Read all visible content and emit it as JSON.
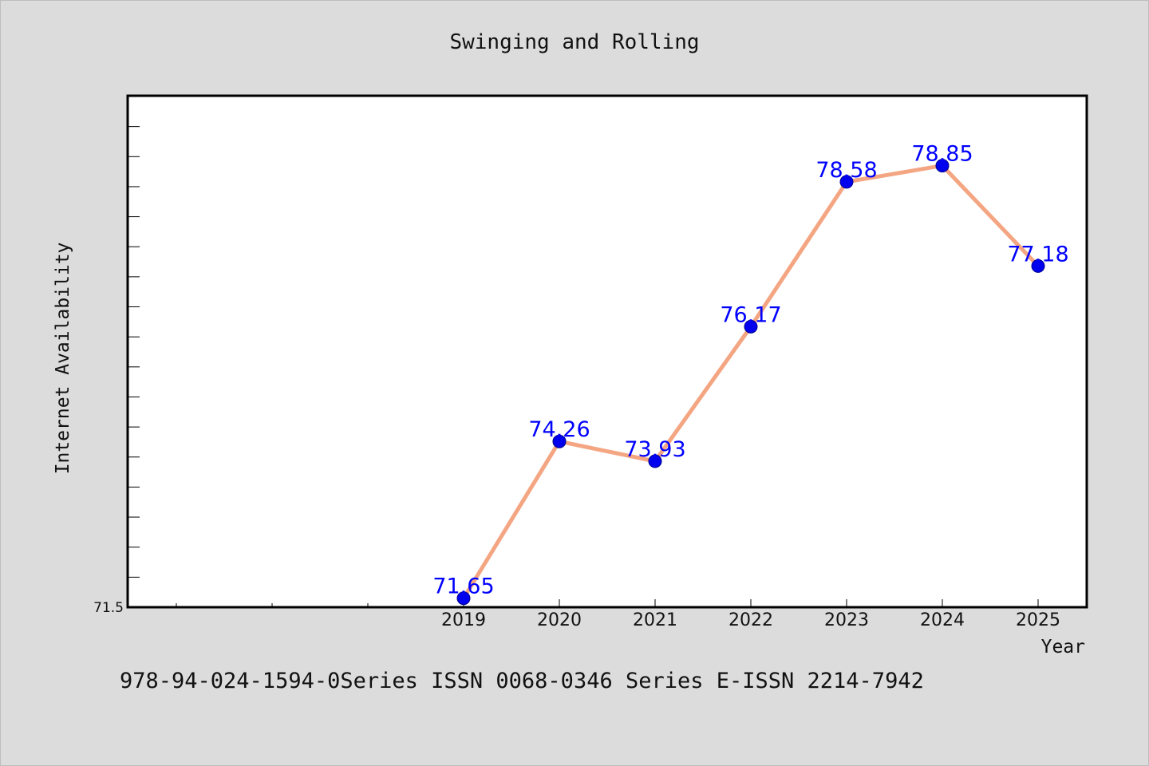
{
  "chart_data": {
    "type": "line",
    "title": "Swinging and Rolling",
    "xlabel": "Year",
    "ylabel": "Internet Availability",
    "categories": [
      "2019",
      "2020",
      "2021",
      "2022",
      "2023",
      "2024",
      "2025"
    ],
    "series": [
      {
        "values": [
          71.65,
          74.26,
          73.93,
          76.17,
          78.58,
          78.85,
          77.18
        ],
        "labels": [
          "71.65",
          "74.26",
          "73.93",
          "76.17",
          "78.58",
          "78.85",
          "77.18"
        ]
      }
    ],
    "ylim": [
      71.5,
      80.0
    ],
    "y_tick_labels": [
      "71.5"
    ],
    "grid": false,
    "line_color": "#f4a582",
    "marker_color": "#0000ee",
    "label_color": "#0000ff"
  },
  "footer": {
    "text": "978-94-024-1594-0Series ISSN 0068-0346 Series E-ISSN 2214-7942"
  }
}
